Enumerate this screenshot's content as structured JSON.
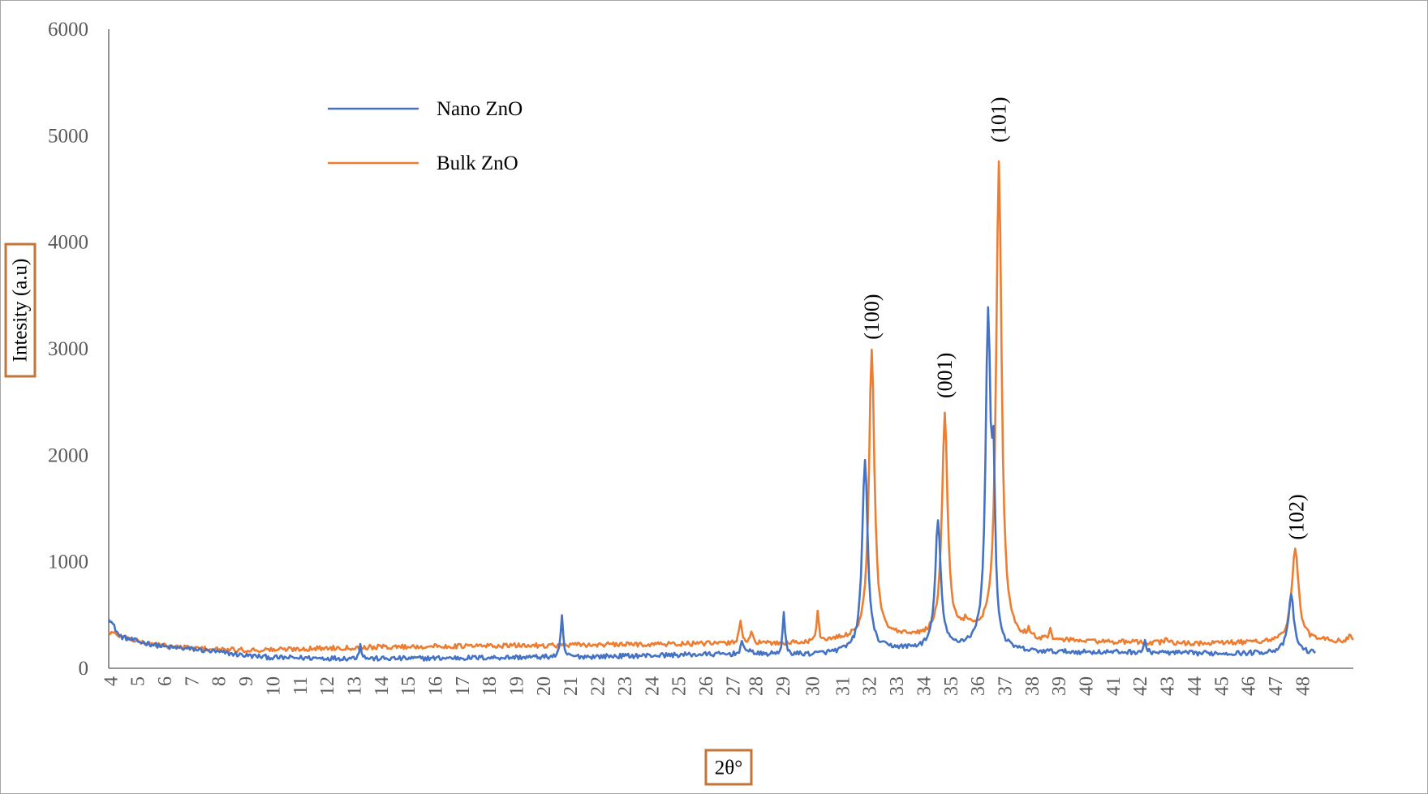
{
  "chart_data": {
    "type": "line",
    "title": "",
    "xlabel": "2θ°",
    "ylabel": "Intesity (a.u)",
    "xlim": [
      3.9,
      49.9
    ],
    "ylim": [
      0,
      6000
    ],
    "y_ticks": [
      0,
      1000,
      2000,
      3000,
      4000,
      5000,
      6000
    ],
    "x_ticks": [
      4,
      5,
      6,
      7,
      8,
      9,
      10,
      11,
      12,
      13,
      14,
      15,
      16,
      17,
      18,
      19,
      20,
      21,
      22,
      23,
      24,
      25,
      26,
      27,
      28,
      29,
      30,
      31,
      32,
      33,
      34,
      35,
      36,
      37,
      38,
      39,
      40,
      41,
      42,
      43,
      44,
      45,
      46,
      47,
      48
    ],
    "x_tick_positions": [
      4,
      5,
      6,
      7,
      8,
      9,
      10,
      11,
      12,
      13,
      14,
      15,
      16,
      17,
      18,
      19,
      20,
      21,
      22,
      23,
      24,
      25,
      26,
      27,
      27.85,
      28.85,
      29.95,
      31.05,
      32.05,
      33.05,
      34.05,
      35.05,
      36.05,
      37.05,
      38.05,
      39.05,
      40.05,
      41.05,
      42.05,
      43.05,
      44.05,
      45.05,
      46.05,
      47.05,
      48.05
    ],
    "grid": false,
    "legend_position": "top-left",
    "series": [
      {
        "name": "Nano ZnO",
        "color": "#4472c4",
        "x_end": 48.5,
        "baseline": [
          [
            3.9,
            480
          ],
          [
            4.3,
            300
          ],
          [
            5,
            250
          ],
          [
            6,
            200
          ],
          [
            7,
            180
          ],
          [
            8,
            150
          ],
          [
            9,
            120
          ],
          [
            10,
            100
          ],
          [
            12,
            95
          ],
          [
            14,
            90
          ],
          [
            16,
            95
          ],
          [
            18,
            100
          ],
          [
            20,
            105
          ],
          [
            22,
            110
          ],
          [
            24,
            120
          ],
          [
            26,
            130
          ],
          [
            28,
            130
          ],
          [
            30,
            130
          ],
          [
            31.5,
            160
          ],
          [
            33,
            180
          ],
          [
            34,
            180
          ],
          [
            35,
            190
          ],
          [
            36,
            210
          ],
          [
            37,
            160
          ],
          [
            38,
            150
          ],
          [
            40,
            150
          ],
          [
            42,
            150
          ],
          [
            44,
            140
          ],
          [
            46,
            140
          ],
          [
            47,
            150
          ],
          [
            48.5,
            140
          ]
        ],
        "peaks": [
          {
            "x": 13.2,
            "height": 140,
            "width": 0.05
          },
          {
            "x": 20.65,
            "height": 390,
            "width": 0.05
          },
          {
            "x": 27.3,
            "height": 120,
            "width": 0.06
          },
          {
            "x": 27.6,
            "height": 60,
            "width": 0.06
          },
          {
            "x": 28.85,
            "height": 390,
            "width": 0.05
          },
          {
            "x": 31.85,
            "height": 1800,
            "width": 0.12
          },
          {
            "x": 34.55,
            "height": 1200,
            "width": 0.12
          },
          {
            "x": 36.4,
            "height": 3050,
            "width": 0.11
          },
          {
            "x": 36.6,
            "height": 1400,
            "width": 0.07
          },
          {
            "x": 42.2,
            "height": 100,
            "width": 0.05
          },
          {
            "x": 47.6,
            "height": 530,
            "width": 0.13
          }
        ]
      },
      {
        "name": "Bulk ZnO",
        "color": "#ed7d31",
        "x_end": 49.9,
        "baseline": [
          [
            3.9,
            340
          ],
          [
            5,
            250
          ],
          [
            6,
            210
          ],
          [
            7,
            190
          ],
          [
            8,
            175
          ],
          [
            9,
            170
          ],
          [
            10,
            175
          ],
          [
            12,
            190
          ],
          [
            14,
            200
          ],
          [
            16,
            205
          ],
          [
            18,
            210
          ],
          [
            20,
            215
          ],
          [
            22,
            220
          ],
          [
            24,
            225
          ],
          [
            26,
            230
          ],
          [
            28,
            230
          ],
          [
            30,
            240
          ],
          [
            31,
            265
          ],
          [
            32,
            280
          ],
          [
            33,
            290
          ],
          [
            34,
            290
          ],
          [
            35,
            320
          ],
          [
            36,
            330
          ],
          [
            37,
            260
          ],
          [
            38,
            260
          ],
          [
            40,
            250
          ],
          [
            42,
            240
          ],
          [
            44,
            230
          ],
          [
            46,
            240
          ],
          [
            48,
            260
          ],
          [
            49.9,
            250
          ]
        ],
        "peaks": [
          {
            "x": 27.25,
            "height": 230,
            "width": 0.06
          },
          {
            "x": 27.65,
            "height": 110,
            "width": 0.06
          },
          {
            "x": 30.1,
            "height": 290,
            "width": 0.05
          },
          {
            "x": 32.1,
            "height": 2700,
            "width": 0.12
          },
          {
            "x": 34.8,
            "height": 2070,
            "width": 0.12
          },
          {
            "x": 35.6,
            "height": 80,
            "width": 0.1
          },
          {
            "x": 36.8,
            "height": 4470,
            "width": 0.12
          },
          {
            "x": 37.9,
            "height": 80,
            "width": 0.06
          },
          {
            "x": 38.7,
            "height": 80,
            "width": 0.06
          },
          {
            "x": 43.0,
            "height": 60,
            "width": 0.06
          },
          {
            "x": 47.75,
            "height": 870,
            "width": 0.15
          },
          {
            "x": 49.8,
            "height": 60,
            "width": 0.08
          }
        ]
      }
    ],
    "annotations": [
      {
        "text": "(100)",
        "x": 32.1,
        "y": 3300
      },
      {
        "text": "(001)",
        "x": 34.8,
        "y": 2750
      },
      {
        "text": "(101)",
        "x": 36.8,
        "y": 5150
      },
      {
        "text": "(102)",
        "x": 47.8,
        "y": 1420
      }
    ]
  }
}
